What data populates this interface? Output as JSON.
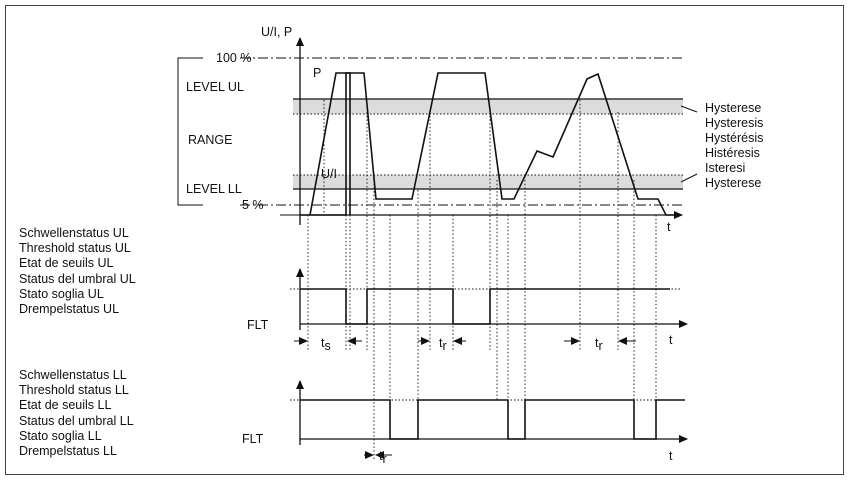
{
  "axis": {
    "y_label": "U/I, P",
    "t_label": "t",
    "pct_100": "100 %",
    "pct_5": "5 %"
  },
  "levels": {
    "ul": "LEVEL  UL",
    "ll": "LEVEL  LL",
    "range": "RANGE"
  },
  "curves": {
    "p": "P",
    "ui": "U/I"
  },
  "hysteresis": [
    "Hysterese",
    "Hysteresis",
    "Hystérésis",
    "Histéresis",
    "Isteresi",
    "Hysterese"
  ],
  "status_ul": {
    "labels": [
      "Schwellenstatus UL",
      "Threshold status UL",
      "Etat de seuils UL",
      "Status del umbral UL",
      "Stato soglia UL",
      "Drempelstatus UL"
    ],
    "flt": "FLT",
    "t_label": "t"
  },
  "status_ll": {
    "labels": [
      "Schwellenstatus LL",
      "Threshold status LL",
      "Etat de seuils LL",
      "Status del umbral LL",
      "Stato soglia LL",
      "Drempelstatus LL"
    ],
    "flt": "FLT",
    "t_label": "t"
  },
  "timing": {
    "t": "t",
    "s": "s",
    "r": "r"
  },
  "colors": {
    "band": "#dcdcdc",
    "line": "#111111",
    "border": "#444444"
  }
}
